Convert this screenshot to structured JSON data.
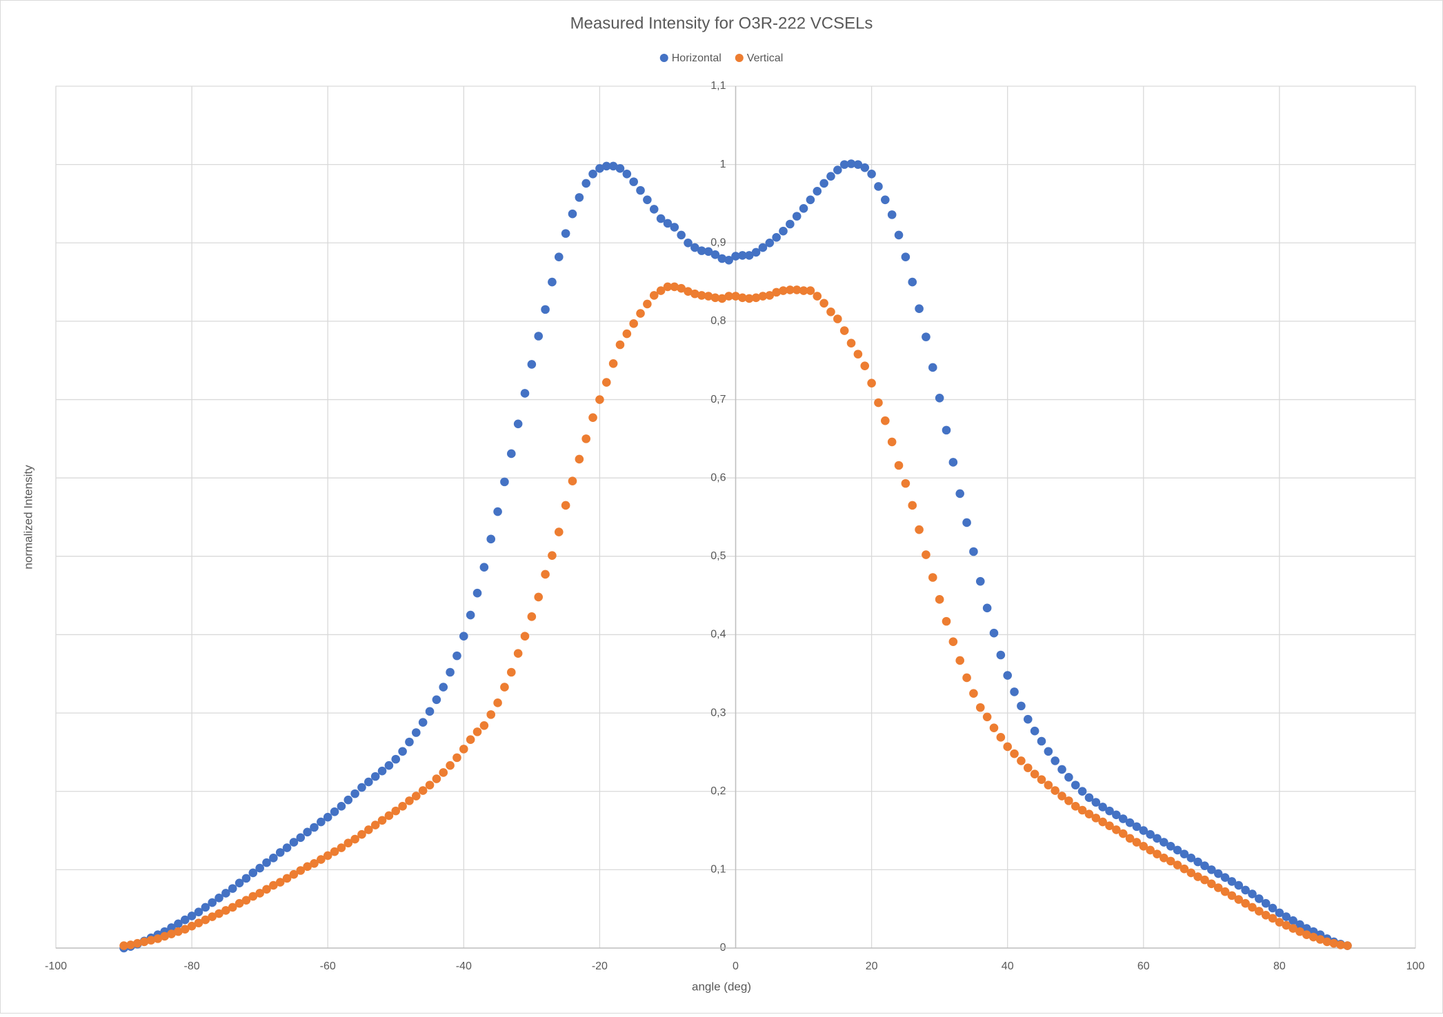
{
  "chart_data": {
    "type": "scatter",
    "title": "Measured Intensity for O3R-222 VCSELs",
    "x_label": "angle (deg)",
    "y_label": "normalized Intensity",
    "xlim": [
      -100,
      100
    ],
    "xticks": [
      -100,
      -80,
      -60,
      -40,
      -20,
      0,
      20,
      40,
      60,
      80,
      100
    ],
    "ylim": [
      0,
      1.1
    ],
    "yticks": [
      0,
      {
        "value": 0.1,
        "label": "0,1"
      },
      {
        "value": 0.2,
        "label": "0,2"
      },
      {
        "value": 0.3,
        "label": "0,3"
      },
      {
        "value": 0.4,
        "label": "0,4"
      },
      {
        "value": 0.5,
        "label": "0,5"
      },
      {
        "value": 0.6,
        "label": "0,6"
      },
      {
        "value": 0.7,
        "label": "0,7"
      },
      {
        "value": 0.8,
        "label": "0,8"
      },
      {
        "value": 0.9,
        "label": "0,9"
      },
      1,
      {
        "value": 1.1,
        "label": "1,1"
      }
    ],
    "grid": true,
    "legend": "top",
    "x": [
      -90,
      -89,
      -88,
      -87,
      -86,
      -85,
      -84,
      -83,
      -82,
      -81,
      -80,
      -79,
      -78,
      -77,
      -76,
      -75,
      -74,
      -73,
      -72,
      -71,
      -70,
      -69,
      -68,
      -67,
      -66,
      -65,
      -64,
      -63,
      -62,
      -61,
      -60,
      -59,
      -58,
      -57,
      -56,
      -55,
      -54,
      -53,
      -52,
      -51,
      -50,
      -49,
      -48,
      -47,
      -46,
      -45,
      -44,
      -43,
      -42,
      -41,
      -40,
      -39,
      -38,
      -37,
      -36,
      -35,
      -34,
      -33,
      -32,
      -31,
      -30,
      -29,
      -28,
      -27,
      -26,
      -25,
      -24,
      -23,
      -22,
      -21,
      -20,
      -19,
      -18,
      -17,
      -16,
      -15,
      -14,
      -13,
      -12,
      -11,
      -10,
      -9,
      -8,
      -7,
      -6,
      -5,
      -4,
      -3,
      -2,
      -1,
      0,
      1,
      2,
      3,
      4,
      5,
      6,
      7,
      8,
      9,
      10,
      11,
      12,
      13,
      14,
      15,
      16,
      17,
      18,
      19,
      20,
      21,
      22,
      23,
      24,
      25,
      26,
      27,
      28,
      29,
      30,
      31,
      32,
      33,
      34,
      35,
      36,
      37,
      38,
      39,
      40,
      41,
      42,
      43,
      44,
      45,
      46,
      47,
      48,
      49,
      50,
      51,
      52,
      53,
      54,
      55,
      56,
      57,
      58,
      59,
      60,
      61,
      62,
      63,
      64,
      65,
      66,
      67,
      68,
      69,
      70,
      71,
      72,
      73,
      74,
      75,
      76,
      77,
      78,
      79,
      80,
      81,
      82,
      83,
      84,
      85,
      86,
      87,
      88,
      89,
      90
    ],
    "series": [
      {
        "name": "Horizontal",
        "color": "#4472c4",
        "values": [
          0,
          0.002,
          0.005,
          0.009,
          0.013,
          0.017,
          0.021,
          0.026,
          0.031,
          0.036,
          0.041,
          0.046,
          0.052,
          0.058,
          0.064,
          0.07,
          0.076,
          0.083,
          0.089,
          0.096,
          0.102,
          0.109,
          0.115,
          0.122,
          0.128,
          0.135,
          0.141,
          0.148,
          0.154,
          0.161,
          0.167,
          0.174,
          0.181,
          0.189,
          0.197,
          0.205,
          0.212,
          0.219,
          0.226,
          0.233,
          0.241,
          0.251,
          0.263,
          0.275,
          0.288,
          0.302,
          0.317,
          0.333,
          0.352,
          0.373,
          0.398,
          0.425,
          0.453,
          0.486,
          0.522,
          0.557,
          0.595,
          0.631,
          0.669,
          0.708,
          0.745,
          0.781,
          0.815,
          0.85,
          0.882,
          0.912,
          0.937,
          0.958,
          0.976,
          0.988,
          0.995,
          0.998,
          0.998,
          0.995,
          0.988,
          0.978,
          0.967,
          0.955,
          0.943,
          0.931,
          0.925,
          0.92,
          0.91,
          0.9,
          0.894,
          0.89,
          0.889,
          0.885,
          0.88,
          0.878,
          0.883,
          0.884,
          0.884,
          0.888,
          0.894,
          0.9,
          0.907,
          0.915,
          0.924,
          0.934,
          0.944,
          0.955,
          0.966,
          0.976,
          0.985,
          0.993,
          1.0,
          1.001,
          1.0,
          0.996,
          0.988,
          0.972,
          0.955,
          0.936,
          0.91,
          0.882,
          0.85,
          0.816,
          0.78,
          0.741,
          0.702,
          0.661,
          0.62,
          0.58,
          0.543,
          0.506,
          0.468,
          0.434,
          0.402,
          0.374,
          0.348,
          0.327,
          0.309,
          0.292,
          0.277,
          0.264,
          0.251,
          0.239,
          0.228,
          0.218,
          0.208,
          0.2,
          0.192,
          0.186,
          0.18,
          0.175,
          0.17,
          0.165,
          0.16,
          0.155,
          0.15,
          0.145,
          0.14,
          0.135,
          0.13,
          0.125,
          0.12,
          0.115,
          0.11,
          0.105,
          0.1,
          0.095,
          0.09,
          0.085,
          0.08,
          0.074,
          0.069,
          0.063,
          0.057,
          0.051,
          0.045,
          0.04,
          0.035,
          0.03,
          0.025,
          0.021,
          0.017,
          0.012,
          0.008,
          0.005,
          0.003
        ]
      },
      {
        "name": "Vertical",
        "color": "#ed7d31",
        "values": [
          0.003,
          0.004,
          0.006,
          0.008,
          0.01,
          0.012,
          0.015,
          0.018,
          0.021,
          0.024,
          0.028,
          0.032,
          0.036,
          0.04,
          0.044,
          0.048,
          0.052,
          0.057,
          0.061,
          0.066,
          0.07,
          0.075,
          0.08,
          0.084,
          0.089,
          0.094,
          0.099,
          0.104,
          0.108,
          0.113,
          0.118,
          0.123,
          0.128,
          0.134,
          0.139,
          0.145,
          0.151,
          0.157,
          0.163,
          0.169,
          0.175,
          0.181,
          0.188,
          0.194,
          0.201,
          0.208,
          0.216,
          0.224,
          0.233,
          0.243,
          0.254,
          0.266,
          0.276,
          0.284,
          0.298,
          0.313,
          0.333,
          0.352,
          0.376,
          0.398,
          0.423,
          0.448,
          0.477,
          0.501,
          0.531,
          0.565,
          0.596,
          0.624,
          0.65,
          0.677,
          0.7,
          0.722,
          0.746,
          0.77,
          0.784,
          0.797,
          0.81,
          0.822,
          0.833,
          0.839,
          0.844,
          0.844,
          0.842,
          0.838,
          0.835,
          0.833,
          0.832,
          0.83,
          0.829,
          0.832,
          0.832,
          0.83,
          0.829,
          0.83,
          0.832,
          0.833,
          0.837,
          0.839,
          0.84,
          0.84,
          0.839,
          0.839,
          0.832,
          0.823,
          0.812,
          0.803,
          0.788,
          0.772,
          0.758,
          0.743,
          0.721,
          0.696,
          0.673,
          0.646,
          0.616,
          0.593,
          0.565,
          0.534,
          0.502,
          0.473,
          0.445,
          0.417,
          0.391,
          0.367,
          0.345,
          0.325,
          0.307,
          0.295,
          0.281,
          0.269,
          0.257,
          0.248,
          0.239,
          0.23,
          0.222,
          0.215,
          0.208,
          0.201,
          0.194,
          0.188,
          0.181,
          0.176,
          0.171,
          0.166,
          0.161,
          0.156,
          0.151,
          0.146,
          0.14,
          0.135,
          0.13,
          0.125,
          0.12,
          0.115,
          0.111,
          0.106,
          0.101,
          0.096,
          0.091,
          0.087,
          0.082,
          0.077,
          0.072,
          0.067,
          0.062,
          0.057,
          0.052,
          0.047,
          0.042,
          0.038,
          0.033,
          0.029,
          0.025,
          0.021,
          0.017,
          0.014,
          0.011,
          0.008,
          0.006,
          0.004,
          0.003
        ]
      }
    ]
  }
}
